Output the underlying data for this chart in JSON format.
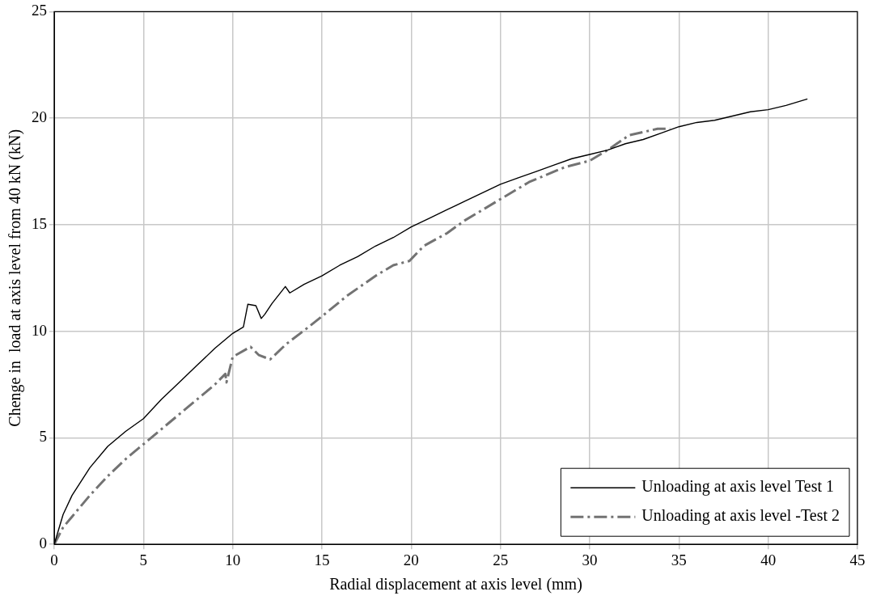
{
  "chart_data": {
    "type": "line",
    "xlabel": "Radial displacement at axis level (mm)",
    "ylabel": "Chenge in  load at axis level from 40 kN (kN)",
    "xlim": [
      0,
      45
    ],
    "xticks": [
      0,
      5,
      10,
      15,
      20,
      25,
      30,
      35,
      40,
      45
    ],
    "ylim": [
      0,
      25
    ],
    "yticks": [
      0,
      5,
      10,
      15,
      20,
      25
    ],
    "grid": true,
    "legend": "bottom right",
    "marker": "none",
    "series": [
      {
        "name": "Unloading at axis level Test 1",
        "color": "#000000",
        "line_style": "solid",
        "x": [
          0,
          0.5,
          1,
          2,
          3,
          4,
          5,
          6,
          7,
          8,
          9,
          10,
          10.6,
          10.85,
          11.3,
          11.6,
          11.8,
          12.2,
          12.95,
          13.2,
          14,
          15,
          16,
          17,
          18,
          19,
          20,
          21,
          22,
          23,
          24,
          25,
          26,
          27,
          28,
          29,
          30,
          31,
          32,
          33,
          34,
          35,
          36,
          37,
          38,
          39,
          40,
          41,
          42.2
        ],
        "values": [
          0,
          1.4,
          2.3,
          3.6,
          4.6,
          5.3,
          5.9,
          6.8,
          7.6,
          8.4,
          9.2,
          9.9,
          10.2,
          11.27,
          11.2,
          10.6,
          10.8,
          11.3,
          12.1,
          11.8,
          12.2,
          12.6,
          13.1,
          13.5,
          14,
          14.4,
          14.9,
          15.3,
          15.7,
          16.1,
          16.5,
          16.9,
          17.2,
          17.5,
          17.8,
          18.1,
          18.3,
          18.5,
          18.8,
          19,
          19.3,
          19.6,
          19.8,
          19.9,
          20.1,
          20.3,
          20.4,
          20.6,
          20.9
        ]
      },
      {
        "name": "Unloading at axis level -Test 2",
        "color": "#737373",
        "line_style": "dashed",
        "x": [
          0,
          0.5,
          1,
          2,
          3,
          4,
          5,
          6,
          7,
          8,
          9,
          9.59,
          9.65,
          10,
          11,
          11.47,
          12.1,
          13,
          14.05,
          15,
          16.4,
          18,
          19,
          19.9,
          20.7,
          22,
          23,
          25,
          26.6,
          28.6,
          30,
          31,
          32.2,
          33.8,
          34.5
        ],
        "values": [
          0,
          0.8,
          1.3,
          2.3,
          3.2,
          4,
          4.7,
          5.4,
          6.1,
          6.8,
          7.5,
          8,
          7.6,
          8.8,
          9.27,
          8.88,
          8.68,
          9.4,
          10.07,
          10.7,
          11.66,
          12.6,
          13.1,
          13.3,
          14,
          14.6,
          15.2,
          16.2,
          17,
          17.7,
          18,
          18.5,
          19.2,
          19.5,
          19.5
        ]
      }
    ]
  }
}
